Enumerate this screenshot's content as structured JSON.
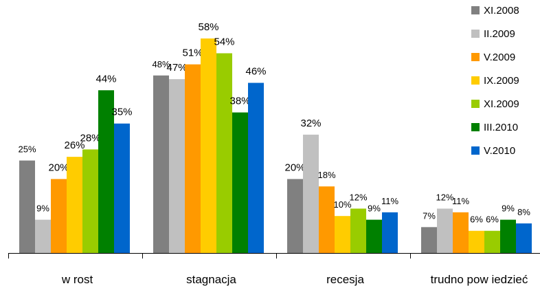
{
  "chart_data": {
    "type": "bar",
    "categories": [
      "w rost",
      "stagnacja",
      "recesja",
      "trudno pow iedzieć"
    ],
    "series": [
      {
        "name": "XI.2008",
        "color": "#808080",
        "values": [
          25,
          48,
          20,
          7
        ],
        "labels": [
          "25%",
          "48%",
          "20%",
          "7%"
        ]
      },
      {
        "name": "II.2009",
        "color": "#c0c0c0",
        "values": [
          9,
          47,
          32,
          12
        ],
        "labels": [
          "9%",
          "47%",
          "32%",
          "12%"
        ]
      },
      {
        "name": "V.2009",
        "color": "#ff9900",
        "values": [
          20,
          51,
          18,
          11
        ],
        "labels": [
          "20%",
          "51%",
          "18%",
          "11%"
        ]
      },
      {
        "name": "IX.2009",
        "color": "#ffcc00",
        "values": [
          26,
          58,
          10,
          6
        ],
        "labels": [
          "26%",
          "58%",
          "10%",
          "6%"
        ]
      },
      {
        "name": "XI.2009",
        "color": "#99cc00",
        "values": [
          28,
          54,
          12,
          6
        ],
        "labels": [
          "28%",
          "54%",
          "12%",
          "6%"
        ]
      },
      {
        "name": "III.2010",
        "color": "#008000",
        "values": [
          44,
          38,
          9,
          9
        ],
        "labels": [
          "44%",
          "38%",
          "9%",
          "9%"
        ]
      },
      {
        "name": "V.2010",
        "color": "#0066cc",
        "values": [
          35,
          46,
          11,
          8
        ],
        "labels": [
          "35%",
          "46%",
          "11%",
          "8%"
        ]
      }
    ],
    "ylim": [
      0,
      60
    ],
    "grid": false,
    "legend": "top-right"
  }
}
